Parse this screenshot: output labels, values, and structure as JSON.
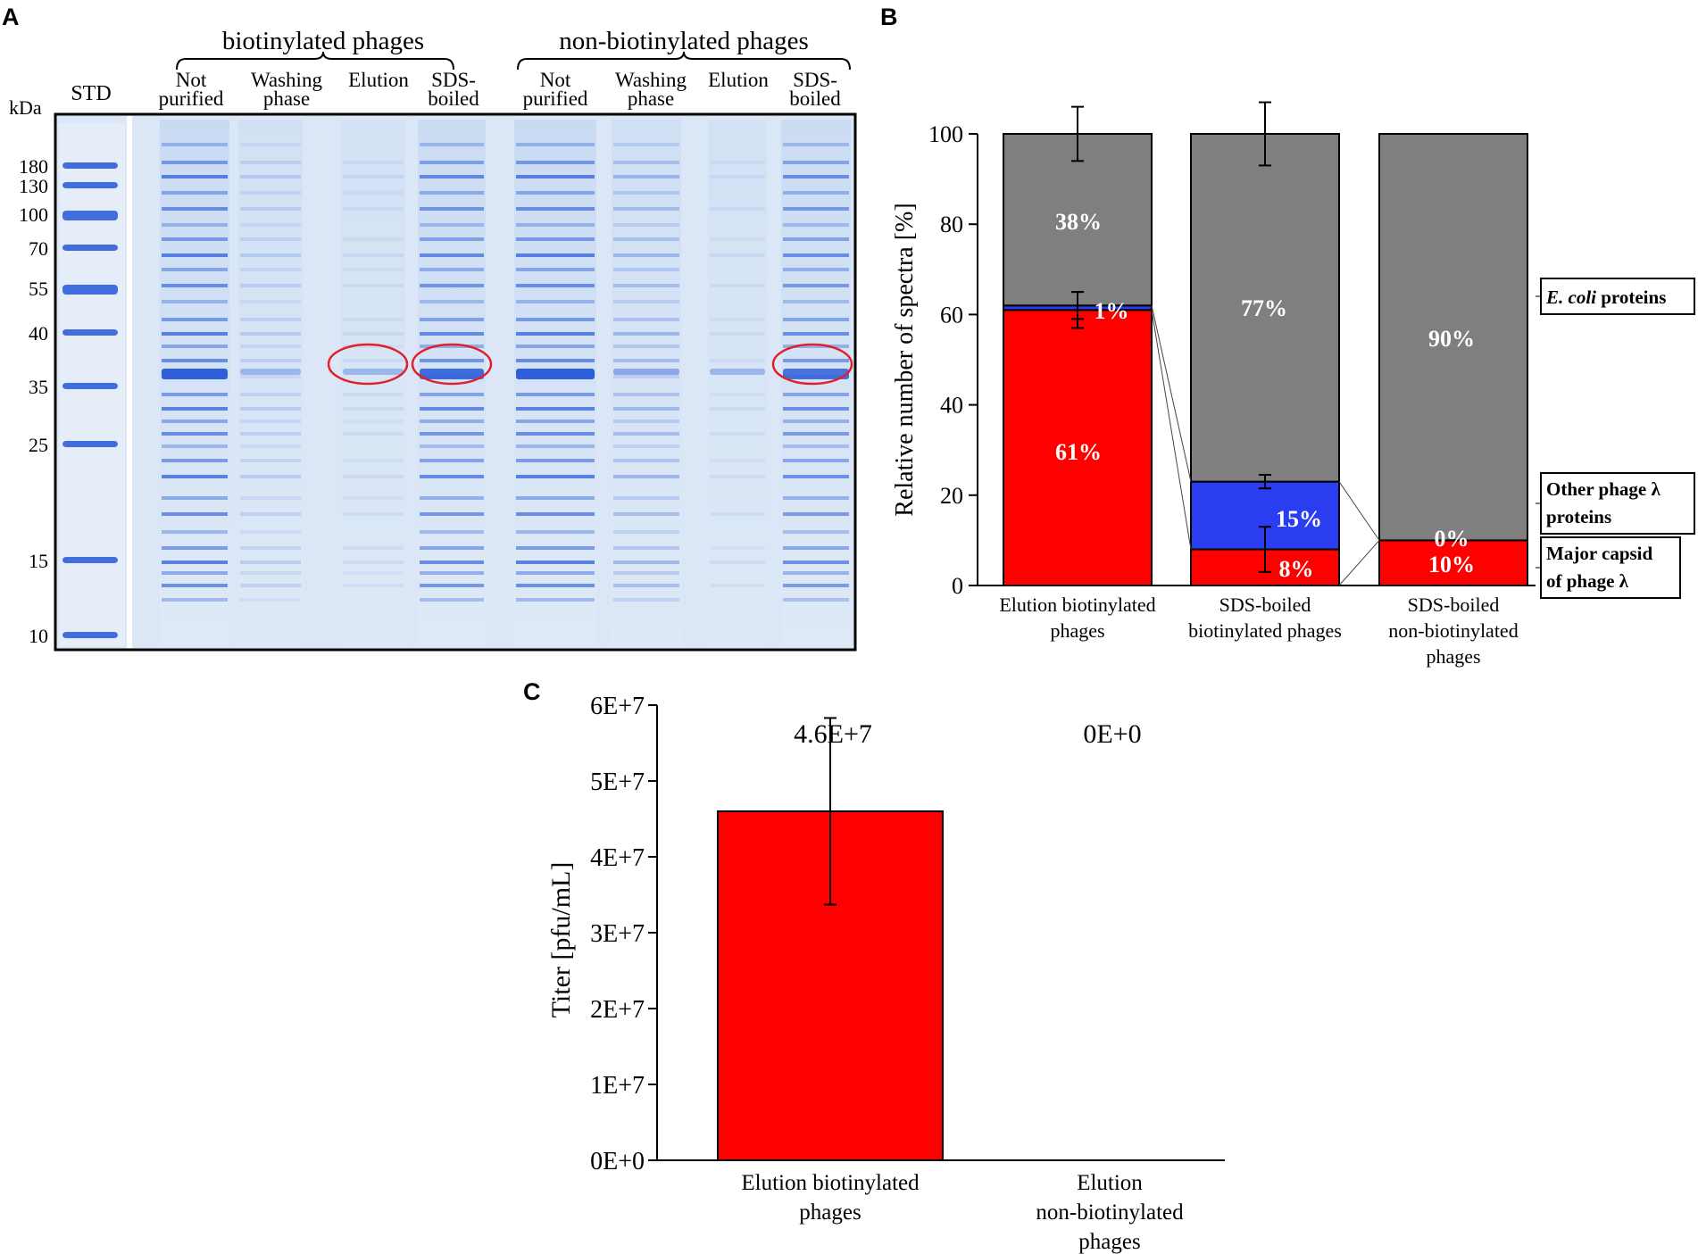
{
  "panels": {
    "a": "A",
    "b": "B",
    "c": "C"
  },
  "colors": {
    "red": "#ff0000",
    "blue": "#2b3df0",
    "gray": "#7f7f7f",
    "gel_bg": "#d8e6f6",
    "band": "#2f5fd8"
  },
  "gel": {
    "kda_label": "kDa",
    "std_label": "STD",
    "group_labels": [
      "biotinylated phages",
      "non-biotinylated phages"
    ],
    "lanes": [
      {
        "line1": "Not",
        "line2": "purified"
      },
      {
        "line1": "Washing",
        "line2": "phase"
      },
      {
        "line1": "Elution",
        "line2": ""
      },
      {
        "line1": "SDS-",
        "line2": "boiled"
      },
      {
        "line1": "Not",
        "line2": "purified"
      },
      {
        "line1": "Washing",
        "line2": "phase"
      },
      {
        "line1": "Elution",
        "line2": ""
      },
      {
        "line1": "SDS-",
        "line2": "boiled"
      }
    ],
    "markers": [
      {
        "label": "180",
        "kda": 180
      },
      {
        "label": "130",
        "kda": 130
      },
      {
        "label": "100",
        "kda": 100
      },
      {
        "label": "70",
        "kda": 70
      },
      {
        "label": "55",
        "kda": 55
      },
      {
        "label": "40",
        "kda": 40
      },
      {
        "label": "35",
        "kda": 35
      },
      {
        "label": "25",
        "kda": 25
      },
      {
        "label": "15",
        "kda": 15
      },
      {
        "label": "10",
        "kda": 10
      }
    ]
  },
  "chart_data": [
    {
      "type": "bar",
      "stacked": true,
      "ylabel": "Relative number of spectra [%]",
      "ylim": [
        0,
        100
      ],
      "yticks": [
        0,
        20,
        40,
        60,
        80,
        100
      ],
      "categories": [
        [
          "Elution biotinylated",
          "phages"
        ],
        [
          "SDS-boiled",
          "biotinylated phages"
        ],
        [
          "SDS-boiled",
          "non-biotinylated",
          "phages"
        ]
      ],
      "series": [
        {
          "name": "Major capsid of phage λ",
          "legend_lines": [
            "Major capsid",
            "of phage λ"
          ],
          "color": "#ff0000",
          "values": [
            61,
            8,
            10
          ],
          "labels": [
            "61%",
            "8%",
            "10%"
          ],
          "errors": [
            4,
            5,
            null
          ]
        },
        {
          "name": "Other phage λ proteins",
          "legend_lines": [
            "Other phage λ",
            "proteins"
          ],
          "color": "#2b3df0",
          "values": [
            1,
            15,
            0
          ],
          "labels": [
            "1%",
            "15%",
            "0%"
          ],
          "errors": [
            3,
            1.5,
            null
          ]
        },
        {
          "name": "E. coli proteins",
          "legend_lines": [
            "E. coli",
            " proteins"
          ],
          "color": "#7f7f7f",
          "values": [
            38,
            77,
            90
          ],
          "labels": [
            "38%",
            "77%",
            "90%"
          ],
          "errors": [
            6,
            7,
            null
          ]
        }
      ]
    },
    {
      "type": "bar",
      "ylabel": "Titer [pfu/mL]",
      "ylim": [
        0,
        60000000
      ],
      "yticks": [
        0,
        10000000,
        20000000,
        30000000,
        40000000,
        50000000,
        60000000
      ],
      "ytick_labels": [
        "0E+0",
        "1E+7",
        "2E+7",
        "3E+7",
        "4E+7",
        "5E+7",
        "6E+7"
      ],
      "categories": [
        [
          "Elution biotinylated",
          "phages"
        ],
        [
          "Elution",
          "non-biotinylated",
          "phages"
        ]
      ],
      "values": [
        46000000,
        0
      ],
      "value_labels": [
        "4.6E+7",
        "0E+0"
      ],
      "errors": [
        12300000,
        0
      ],
      "color": "#ff0000"
    }
  ]
}
